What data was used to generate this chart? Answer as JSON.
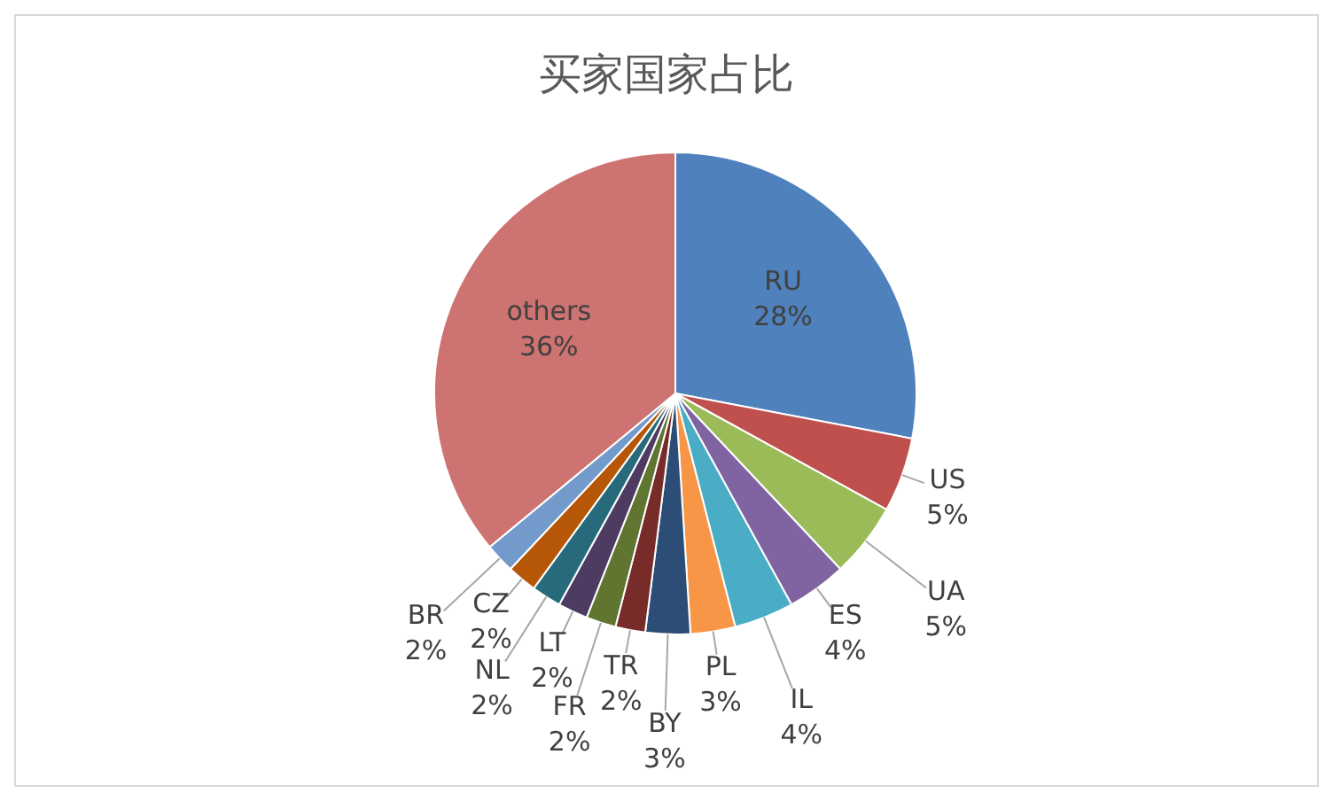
{
  "chart_data": {
    "type": "pie",
    "title": "买家国家占比",
    "categories": [
      "RU",
      "US",
      "UA",
      "ES",
      "IL",
      "PL",
      "BY",
      "TR",
      "FR",
      "LT",
      "NL",
      "CZ",
      "BR",
      "others"
    ],
    "values": [
      28,
      5,
      5,
      4,
      4,
      3,
      3,
      2,
      2,
      2,
      2,
      2,
      2,
      36
    ],
    "value_labels": [
      "28%",
      "5%",
      "5%",
      "4%",
      "4%",
      "3%",
      "3%",
      "2%",
      "2%",
      "2%",
      "2%",
      "2%",
      "2%",
      "36%"
    ],
    "colors": [
      "#4f81bd",
      "#c0504d",
      "#9bbb59",
      "#8064a2",
      "#4bacc6",
      "#f79646",
      "#2c4d75",
      "#772c2a",
      "#5f7530",
      "#4d3b62",
      "#276a7c",
      "#b65708",
      "#729aca",
      "#cd7371"
    ]
  }
}
